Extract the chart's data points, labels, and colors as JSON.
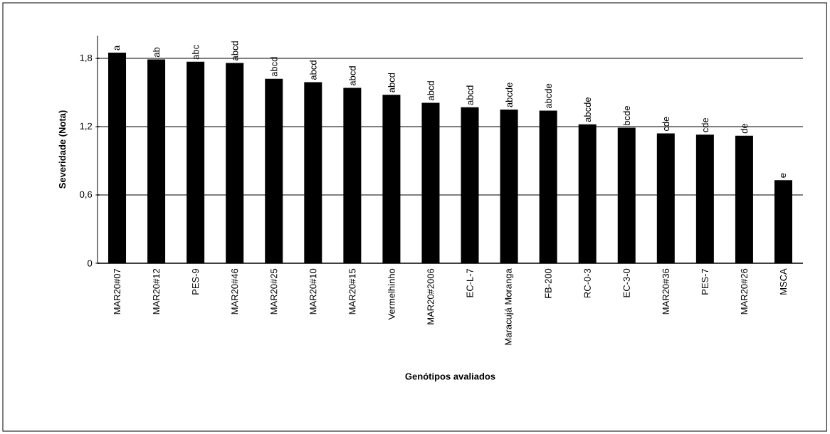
{
  "chart_data": {
    "type": "bar",
    "xlabel": "Genótipos avaliados",
    "ylabel": "Severidade (Nota)",
    "categories": [
      "MAR20#07",
      "MAR20#12",
      "PES-9",
      "MAR20#46",
      "MAR20#25",
      "MAR20#10",
      "MAR20#15",
      "Vermelhinho",
      "MAR20#2006",
      "EC-L-7",
      "Maracujá Moranga",
      "FB-200",
      "RC-0-3",
      "EC-3-0",
      "MAR20#36",
      "PES-7",
      "MAR20#26",
      "MSCA"
    ],
    "values": [
      1.85,
      1.79,
      1.77,
      1.76,
      1.62,
      1.59,
      1.54,
      1.48,
      1.41,
      1.37,
      1.35,
      1.34,
      1.22,
      1.19,
      1.14,
      1.13,
      1.12,
      0.73
    ],
    "value_labels": [
      "a",
      "ab",
      "abc",
      "abcd",
      "abcd",
      "abcd",
      "abcd",
      "abcd",
      "abcd",
      "abcd",
      "abcde",
      "abcde",
      "abcde",
      "bcde",
      "cde",
      "cde",
      "de",
      "e"
    ],
    "color": "#000000",
    "ylim": [
      0,
      2.0
    ],
    "yticks": [
      0,
      {
        "value": 0.6,
        "label": "0,6"
      },
      {
        "value": 1.2,
        "label": "1,2"
      },
      {
        "value": 1.8,
        "label": "1,8"
      }
    ],
    "grid": "y"
  }
}
